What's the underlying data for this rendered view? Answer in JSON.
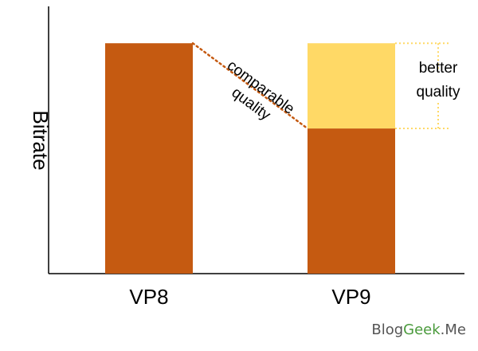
{
  "chart_data": {
    "type": "bar",
    "title": "",
    "xlabel": "",
    "ylabel": "Bitrate",
    "categories": [
      "VP8",
      "VP9"
    ],
    "series": [
      {
        "values": [
          100,
          63
        ]
      },
      {
        "values": [
          0,
          37
        ]
      }
    ],
    "ylim": [
      0,
      116
    ],
    "grid": false,
    "legend": "none",
    "colors": [
      "#c55a11",
      "#ffd966"
    ],
    "annotations": [
      {
        "text": [
          "comparable",
          "quality"
        ],
        "from": "VP8 top",
        "to": "VP9 base top",
        "style": "dotted",
        "color": "#c55a11"
      },
      {
        "text": [
          "better",
          "quality"
        ],
        "category": "VP9",
        "range": [
          63,
          100
        ],
        "style": "dotted",
        "color": "#ffd966"
      }
    ]
  },
  "watermark": {
    "parts": [
      "Blog",
      "Geek",
      ".Me"
    ],
    "colors": [
      "#555555",
      "#4a9a3c",
      "#555555"
    ]
  }
}
